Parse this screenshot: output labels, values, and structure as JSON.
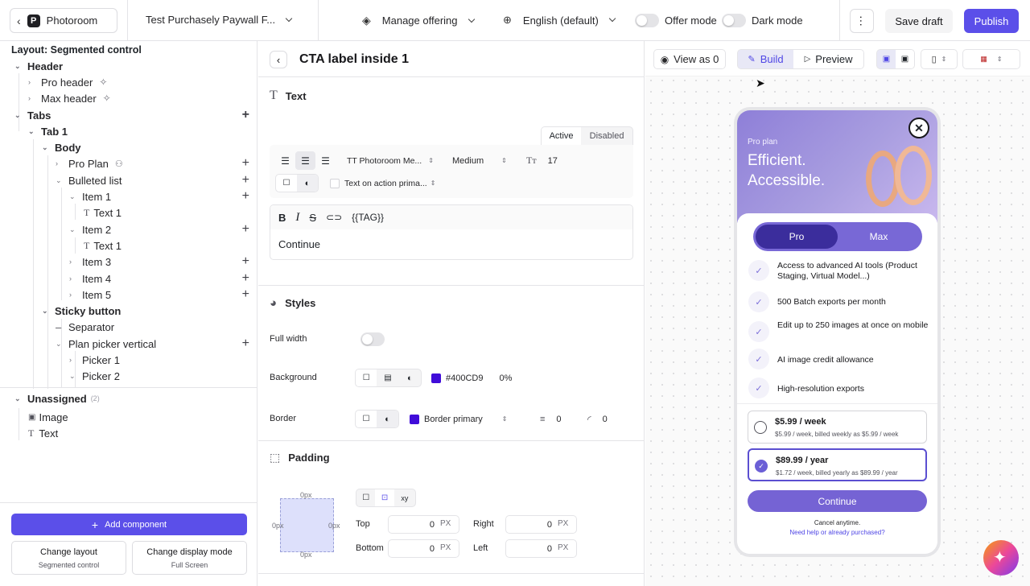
{
  "topbar": {
    "brand": "Photoroom",
    "project": "Test Purchasely Paywall F...",
    "manage": "Manage offering",
    "language": "English (default)",
    "offer_mode": "Offer mode",
    "dark_mode": "Dark mode",
    "save_draft": "Save draft",
    "publish": "Publish"
  },
  "tree": {
    "layout_title": "Layout: Segmented control",
    "items": [
      {
        "label": "Header"
      },
      {
        "label": "Pro header"
      },
      {
        "label": "Max header"
      },
      {
        "label": "Tabs"
      },
      {
        "label": "Tab 1"
      },
      {
        "label": "Body"
      },
      {
        "label": "Pro Plan"
      },
      {
        "label": "Bulleted list"
      },
      {
        "label": "Item 1"
      },
      {
        "label": "Text 1"
      },
      {
        "label": "Item 2"
      },
      {
        "label": "Text 1"
      },
      {
        "label": "Item 3"
      },
      {
        "label": "Item 4"
      },
      {
        "label": "Item 5"
      },
      {
        "label": "Sticky button"
      },
      {
        "label": "Separator"
      },
      {
        "label": "Plan picker vertical"
      },
      {
        "label": "Picker 1"
      },
      {
        "label": "Picker 2"
      }
    ],
    "unassigned": "Unassigned",
    "unassigned_count": "(2)",
    "unassigned_items": [
      {
        "label": "Image"
      },
      {
        "label": "Text"
      }
    ],
    "add_component": "Add component",
    "change_layout": "Change layout",
    "change_layout_value": "Segmented control",
    "change_display": "Change display mode",
    "change_display_value": "Full Screen"
  },
  "editor": {
    "title": "CTA label inside 1",
    "text_section": "Text",
    "state_active": "Active",
    "state_disabled": "Disabled",
    "font": "TT Photoroom Me...",
    "weight": "Medium",
    "size": "17",
    "color_token": "Text on action prima...",
    "tag": "{{TAG}}",
    "content": "Continue",
    "styles_section": "Styles",
    "full_width": "Full width",
    "background": "Background",
    "bg_hex": "#400CD9",
    "bg_opacity": "0%",
    "border": "Border",
    "border_token": "Border primary",
    "border_width": "0",
    "border_radius": "0",
    "padding_section": "Padding",
    "pad_top_px": "0px",
    "pad_left_px": "0px",
    "pad_right_px": "0px",
    "pad_bottom_px": "0px",
    "xy": "xy",
    "top": "Top",
    "right": "Right",
    "bottom": "Bottom",
    "left": "Left",
    "top_val": "0",
    "right_val": "0",
    "bottom_val": "0",
    "left_val": "0",
    "unit": "PX"
  },
  "preview": {
    "view_as": "View as 0",
    "build": "Build",
    "preview": "Preview",
    "plan_kicker": "Pro plan",
    "headline1": "Efficient.",
    "headline2": "Accessible.",
    "tab_pro": "Pro",
    "tab_max": "Max",
    "features": [
      {
        "text": "Access to advanced AI tools (Product Staging, Virtual Model...)"
      },
      {
        "text": "500 Batch exports per month"
      },
      {
        "text": "Edit up to 250 images at once on mobile"
      },
      {
        "text": "AI image credit allowance"
      },
      {
        "text": "High-resolution exports"
      }
    ],
    "plans": [
      {
        "price": "$5.99 / week",
        "detail": "$5.99 / week, billed weekly as $5.99 / week",
        "selected": false
      },
      {
        "price": "$89.99 / year",
        "detail": "$1.72 / week, billed yearly as $89.99 / year",
        "selected": true
      }
    ],
    "cta": "Continue",
    "cancel": "Cancel anytime.",
    "help": "Need help or already purchased?"
  },
  "colors": {
    "accent": "#5b4fe9",
    "cta": "#7563d4",
    "tab_active": "#3b2d9c"
  }
}
